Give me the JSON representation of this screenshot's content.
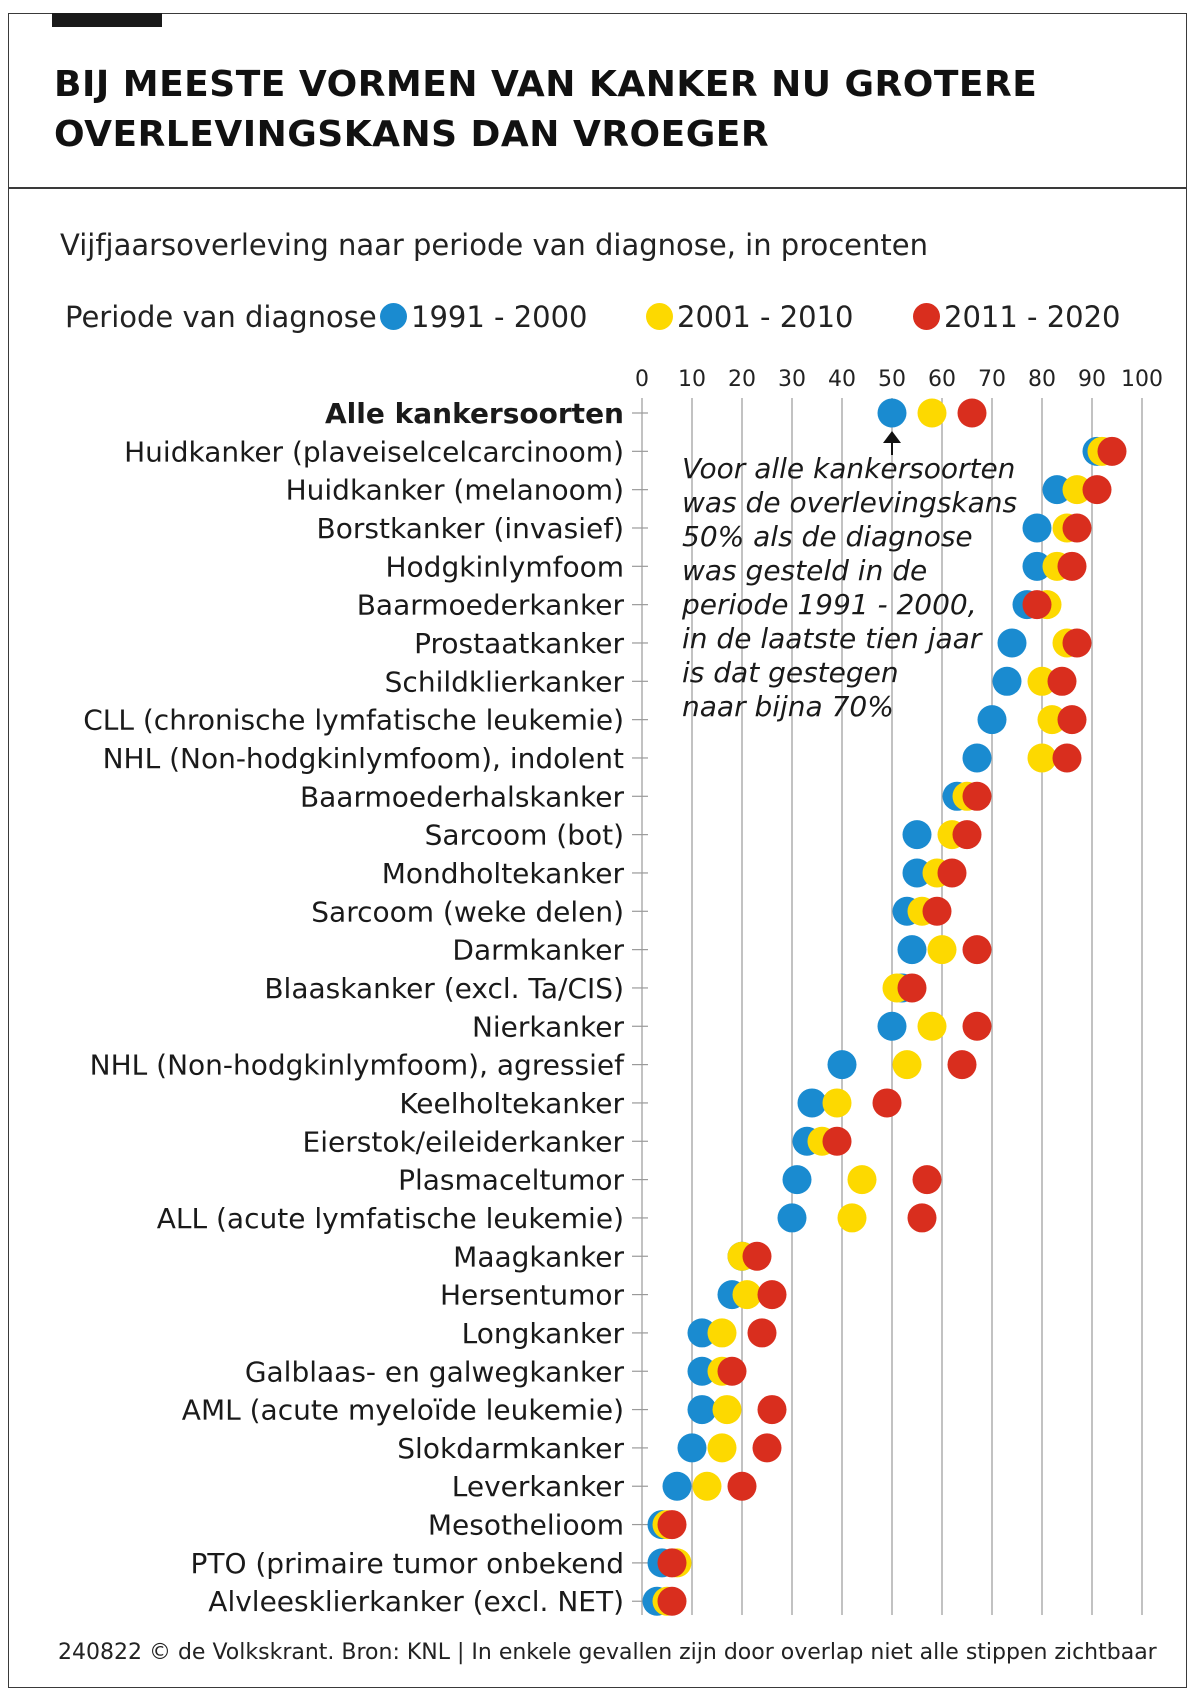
{
  "header": {
    "title_lines": [
      "BIJ MEESTE VORMEN VAN KANKER NU GROTERE",
      "OVERLEVINGSKANS DAN VROEGER"
    ],
    "subtitle": "Vijfjaarsoverleving naar periode van diagnose, in procenten"
  },
  "legend": {
    "label": "Periode van diagnose",
    "items": [
      {
        "name": "1991 - 2000",
        "color": "#1a8bd0"
      },
      {
        "name": "2001 - 2010",
        "color": "#fdd900"
      },
      {
        "name": "2011 - 2020",
        "color": "#d92e1e"
      }
    ]
  },
  "annotation": {
    "lines": [
      "Voor alle kankersoorten",
      "was de overlevingskans",
      "50% als de diagnose",
      "was gesteld in de",
      "periode 1991 - 2000,",
      "in de laatste tien jaar",
      "is dat gestegen",
      "naar bijna 70%"
    ]
  },
  "footer": "240822 © de Volkskrant. Bron: KNL | In enkele gevallen zijn door overlap niet alle stippen zichtbaar",
  "chart_data": {
    "type": "scatter",
    "xlim": [
      0,
      100
    ],
    "xticks": [
      "0",
      "10",
      "20",
      "30",
      "40",
      "50",
      "60",
      "70",
      "80",
      "90",
      "100"
    ],
    "grid": true,
    "legend_position": "top",
    "series": [
      {
        "name": "1991 - 2000",
        "color": "#1a8bd0"
      },
      {
        "name": "2001 - 2010",
        "color": "#fdd900"
      },
      {
        "name": "2011 - 2020",
        "color": "#d92e1e"
      }
    ],
    "rows": [
      {
        "label": "Alle kankersoorten",
        "bold": true,
        "values": [
          50,
          58,
          66
        ]
      },
      {
        "label": "Huidkanker (plaveiselcelcarcinoom)",
        "values": [
          91,
          92,
          94
        ]
      },
      {
        "label": "Huidkanker (melanoom)",
        "values": [
          83,
          87,
          91
        ]
      },
      {
        "label": "Borstkanker (invasief)",
        "values": [
          79,
          85,
          87
        ]
      },
      {
        "label": "Hodgkinlymfoom",
        "values": [
          79,
          83,
          86
        ]
      },
      {
        "label": "Baarmoederkanker",
        "values": [
          77,
          81,
          79
        ]
      },
      {
        "label": "Prostaatkanker",
        "values": [
          74,
          85,
          87
        ]
      },
      {
        "label": "Schildklierkanker",
        "values": [
          73,
          80,
          84
        ]
      },
      {
        "label": "CLL (chronische lymfatische leukemie)",
        "values": [
          70,
          82,
          86
        ]
      },
      {
        "label": "NHL (Non-hodgkinlymfoom), indolent",
        "values": [
          67,
          80,
          85
        ]
      },
      {
        "label": "Baarmoederhalskanker",
        "values": [
          63,
          65,
          67
        ]
      },
      {
        "label": "Sarcoom (bot)",
        "values": [
          55,
          62,
          65
        ]
      },
      {
        "label": "Mondholtekanker",
        "values": [
          55,
          59,
          62
        ]
      },
      {
        "label": "Sarcoom (weke delen)",
        "values": [
          53,
          56,
          59
        ]
      },
      {
        "label": "Darmkanker",
        "values": [
          54,
          60,
          67
        ]
      },
      {
        "label": "Blaaskanker (excl. Ta/CIS)",
        "values": [
          52,
          51,
          54
        ]
      },
      {
        "label": "Nierkanker",
        "values": [
          50,
          58,
          67
        ]
      },
      {
        "label": "NHL (Non-hodgkinlymfoom), agressief",
        "values": [
          40,
          53,
          64
        ]
      },
      {
        "label": "Keelholtekanker",
        "values": [
          34,
          39,
          49
        ]
      },
      {
        "label": "Eierstok/eileiderkanker",
        "values": [
          33,
          36,
          39
        ]
      },
      {
        "label": "Plasmaceltumor",
        "values": [
          31,
          44,
          57
        ]
      },
      {
        "label": "ALL (acute lymfatische leukemie)",
        "values": [
          30,
          42,
          56
        ]
      },
      {
        "label": "Maagkanker",
        "values": [
          20,
          20,
          23
        ]
      },
      {
        "label": "Hersentumor",
        "values": [
          18,
          21,
          26
        ]
      },
      {
        "label": "Longkanker",
        "values": [
          12,
          16,
          24
        ]
      },
      {
        "label": "Galblaas- en galwegkanker",
        "values": [
          12,
          16,
          18
        ]
      },
      {
        "label": "AML (acute myeloïde leukemie)",
        "values": [
          12,
          17,
          26
        ]
      },
      {
        "label": "Slokdarmkanker",
        "values": [
          10,
          16,
          25
        ]
      },
      {
        "label": "Leverkanker",
        "values": [
          7,
          13,
          20
        ]
      },
      {
        "label": "Mesothelioom",
        "values": [
          4,
          5,
          6
        ]
      },
      {
        "label": "PTO (primaire tumor onbekend",
        "values": [
          4,
          7,
          6
        ]
      },
      {
        "label": "Alvleesklierkanker (excl. NET)",
        "values": [
          3,
          5,
          6
        ]
      }
    ]
  }
}
